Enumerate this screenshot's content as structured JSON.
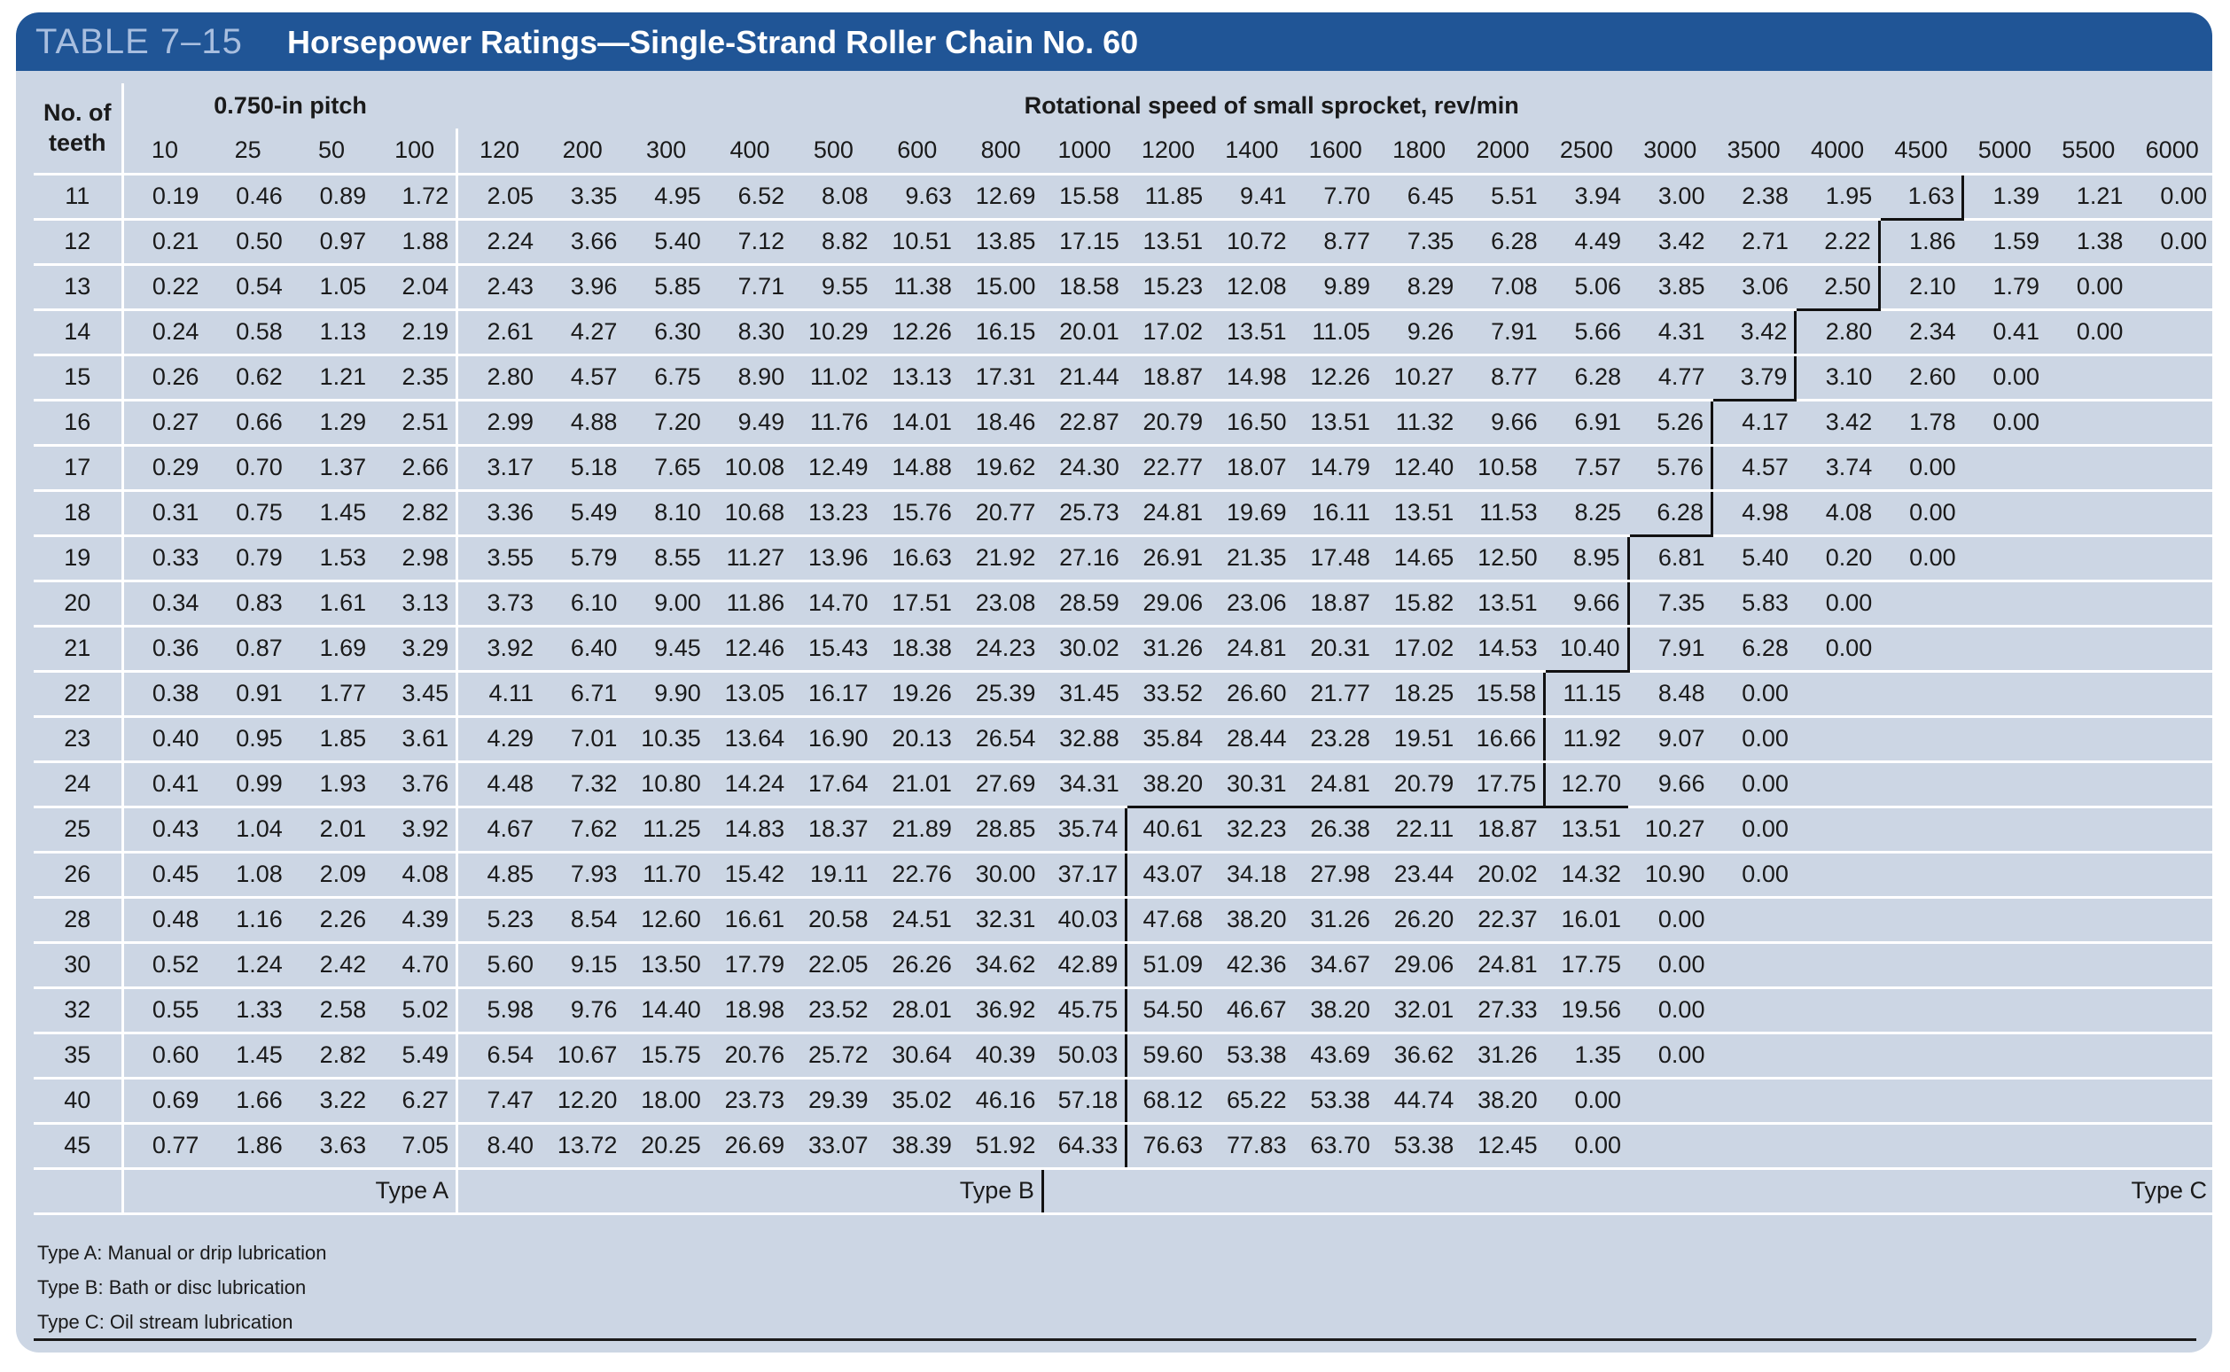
{
  "header": {
    "table_number": "TABLE 7–15",
    "title": "Horsepower Ratings—Single-Strand Roller Chain No. 60"
  },
  "table": {
    "teeth_header": [
      "No. of",
      "teeth"
    ],
    "pitch_label": "0.750-in pitch",
    "speed_label": "Rotational speed of small sprocket, rev/min",
    "speeds": [
      "10",
      "25",
      "50",
      "100",
      "120",
      "200",
      "300",
      "400",
      "500",
      "600",
      "800",
      "1000",
      "1200",
      "1400",
      "1600",
      "1800",
      "2000",
      "2500",
      "3000",
      "3500",
      "4000",
      "4500",
      "5000",
      "5500",
      "6000"
    ],
    "rows": [
      {
        "teeth": "11",
        "values": [
          "0.19",
          "0.46",
          "0.89",
          "1.72",
          "2.05",
          "3.35",
          "4.95",
          "6.52",
          "8.08",
          "9.63",
          "12.69",
          "15.58",
          "11.85",
          "9.41",
          "7.70",
          "6.45",
          "5.51",
          "3.94",
          "3.00",
          "2.38",
          "1.95",
          "1.63",
          "1.39",
          "1.21",
          "0.00"
        ]
      },
      {
        "teeth": "12",
        "values": [
          "0.21",
          "0.50",
          "0.97",
          "1.88",
          "2.24",
          "3.66",
          "5.40",
          "7.12",
          "8.82",
          "10.51",
          "13.85",
          "17.15",
          "13.51",
          "10.72",
          "8.77",
          "7.35",
          "6.28",
          "4.49",
          "3.42",
          "2.71",
          "2.22",
          "1.86",
          "1.59",
          "1.38",
          "0.00"
        ]
      },
      {
        "teeth": "13",
        "values": [
          "0.22",
          "0.54",
          "1.05",
          "2.04",
          "2.43",
          "3.96",
          "5.85",
          "7.71",
          "9.55",
          "11.38",
          "15.00",
          "18.58",
          "15.23",
          "12.08",
          "9.89",
          "8.29",
          "7.08",
          "5.06",
          "3.85",
          "3.06",
          "2.50",
          "2.10",
          "1.79",
          "0.00",
          ""
        ]
      },
      {
        "teeth": "14",
        "values": [
          "0.24",
          "0.58",
          "1.13",
          "2.19",
          "2.61",
          "4.27",
          "6.30",
          "8.30",
          "10.29",
          "12.26",
          "16.15",
          "20.01",
          "17.02",
          "13.51",
          "11.05",
          "9.26",
          "7.91",
          "5.66",
          "4.31",
          "3.42",
          "2.80",
          "2.34",
          "0.41",
          "0.00",
          ""
        ]
      },
      {
        "teeth": "15",
        "values": [
          "0.26",
          "0.62",
          "1.21",
          "2.35",
          "2.80",
          "4.57",
          "6.75",
          "8.90",
          "11.02",
          "13.13",
          "17.31",
          "21.44",
          "18.87",
          "14.98",
          "12.26",
          "10.27",
          "8.77",
          "6.28",
          "4.77",
          "3.79",
          "3.10",
          "2.60",
          "0.00",
          "",
          ""
        ]
      },
      {
        "teeth": "16",
        "values": [
          "0.27",
          "0.66",
          "1.29",
          "2.51",
          "2.99",
          "4.88",
          "7.20",
          "9.49",
          "11.76",
          "14.01",
          "18.46",
          "22.87",
          "20.79",
          "16.50",
          "13.51",
          "11.32",
          "9.66",
          "6.91",
          "5.26",
          "4.17",
          "3.42",
          "1.78",
          "0.00",
          "",
          ""
        ]
      },
      {
        "teeth": "17",
        "values": [
          "0.29",
          "0.70",
          "1.37",
          "2.66",
          "3.17",
          "5.18",
          "7.65",
          "10.08",
          "12.49",
          "14.88",
          "19.62",
          "24.30",
          "22.77",
          "18.07",
          "14.79",
          "12.40",
          "10.58",
          "7.57",
          "5.76",
          "4.57",
          "3.74",
          "0.00",
          "",
          "",
          ""
        ]
      },
      {
        "teeth": "18",
        "values": [
          "0.31",
          "0.75",
          "1.45",
          "2.82",
          "3.36",
          "5.49",
          "8.10",
          "10.68",
          "13.23",
          "15.76",
          "20.77",
          "25.73",
          "24.81",
          "19.69",
          "16.11",
          "13.51",
          "11.53",
          "8.25",
          "6.28",
          "4.98",
          "4.08",
          "0.00",
          "",
          "",
          ""
        ]
      },
      {
        "teeth": "19",
        "values": [
          "0.33",
          "0.79",
          "1.53",
          "2.98",
          "3.55",
          "5.79",
          "8.55",
          "11.27",
          "13.96",
          "16.63",
          "21.92",
          "27.16",
          "26.91",
          "21.35",
          "17.48",
          "14.65",
          "12.50",
          "8.95",
          "6.81",
          "5.40",
          "0.20",
          "0.00",
          "",
          "",
          ""
        ]
      },
      {
        "teeth": "20",
        "values": [
          "0.34",
          "0.83",
          "1.61",
          "3.13",
          "3.73",
          "6.10",
          "9.00",
          "11.86",
          "14.70",
          "17.51",
          "23.08",
          "28.59",
          "29.06",
          "23.06",
          "18.87",
          "15.82",
          "13.51",
          "9.66",
          "7.35",
          "5.83",
          "0.00",
          "",
          "",
          "",
          ""
        ]
      },
      {
        "teeth": "21",
        "values": [
          "0.36",
          "0.87",
          "1.69",
          "3.29",
          "3.92",
          "6.40",
          "9.45",
          "12.46",
          "15.43",
          "18.38",
          "24.23",
          "30.02",
          "31.26",
          "24.81",
          "20.31",
          "17.02",
          "14.53",
          "10.40",
          "7.91",
          "6.28",
          "0.00",
          "",
          "",
          "",
          ""
        ]
      },
      {
        "teeth": "22",
        "values": [
          "0.38",
          "0.91",
          "1.77",
          "3.45",
          "4.11",
          "6.71",
          "9.90",
          "13.05",
          "16.17",
          "19.26",
          "25.39",
          "31.45",
          "33.52",
          "26.60",
          "21.77",
          "18.25",
          "15.58",
          "11.15",
          "8.48",
          "0.00",
          "",
          "",
          "",
          "",
          ""
        ]
      },
      {
        "teeth": "23",
        "values": [
          "0.40",
          "0.95",
          "1.85",
          "3.61",
          "4.29",
          "7.01",
          "10.35",
          "13.64",
          "16.90",
          "20.13",
          "26.54",
          "32.88",
          "35.84",
          "28.44",
          "23.28",
          "19.51",
          "16.66",
          "11.92",
          "9.07",
          "0.00",
          "",
          "",
          "",
          "",
          ""
        ]
      },
      {
        "teeth": "24",
        "values": [
          "0.41",
          "0.99",
          "1.93",
          "3.76",
          "4.48",
          "7.32",
          "10.80",
          "14.24",
          "17.64",
          "21.01",
          "27.69",
          "34.31",
          "38.20",
          "30.31",
          "24.81",
          "20.79",
          "17.75",
          "12.70",
          "9.66",
          "0.00",
          "",
          "",
          "",
          "",
          ""
        ]
      },
      {
        "teeth": "25",
        "values": [
          "0.43",
          "1.04",
          "2.01",
          "3.92",
          "4.67",
          "7.62",
          "11.25",
          "14.83",
          "18.37",
          "21.89",
          "28.85",
          "35.74",
          "40.61",
          "32.23",
          "26.38",
          "22.11",
          "18.87",
          "13.51",
          "10.27",
          "0.00",
          "",
          "",
          "",
          "",
          ""
        ]
      },
      {
        "teeth": "26",
        "values": [
          "0.45",
          "1.08",
          "2.09",
          "4.08",
          "4.85",
          "7.93",
          "11.70",
          "15.42",
          "19.11",
          "22.76",
          "30.00",
          "37.17",
          "43.07",
          "34.18",
          "27.98",
          "23.44",
          "20.02",
          "14.32",
          "10.90",
          "0.00",
          "",
          "",
          "",
          "",
          ""
        ]
      },
      {
        "teeth": "28",
        "values": [
          "0.48",
          "1.16",
          "2.26",
          "4.39",
          "5.23",
          "8.54",
          "12.60",
          "16.61",
          "20.58",
          "24.51",
          "32.31",
          "40.03",
          "47.68",
          "38.20",
          "31.26",
          "26.20",
          "22.37",
          "16.01",
          "0.00",
          "",
          "",
          "",
          "",
          "",
          ""
        ]
      },
      {
        "teeth": "30",
        "values": [
          "0.52",
          "1.24",
          "2.42",
          "4.70",
          "5.60",
          "9.15",
          "13.50",
          "17.79",
          "22.05",
          "26.26",
          "34.62",
          "42.89",
          "51.09",
          "42.36",
          "34.67",
          "29.06",
          "24.81",
          "17.75",
          "0.00",
          "",
          "",
          "",
          "",
          "",
          ""
        ]
      },
      {
        "teeth": "32",
        "values": [
          "0.55",
          "1.33",
          "2.58",
          "5.02",
          "5.98",
          "9.76",
          "14.40",
          "18.98",
          "23.52",
          "28.01",
          "36.92",
          "45.75",
          "54.50",
          "46.67",
          "38.20",
          "32.01",
          "27.33",
          "19.56",
          "0.00",
          "",
          "",
          "",
          "",
          "",
          ""
        ]
      },
      {
        "teeth": "35",
        "values": [
          "0.60",
          "1.45",
          "2.82",
          "5.49",
          "6.54",
          "10.67",
          "15.75",
          "20.76",
          "25.72",
          "30.64",
          "40.39",
          "50.03",
          "59.60",
          "53.38",
          "43.69",
          "36.62",
          "31.26",
          "1.35",
          "0.00",
          "",
          "",
          "",
          "",
          "",
          ""
        ]
      },
      {
        "teeth": "40",
        "values": [
          "0.69",
          "1.66",
          "3.22",
          "6.27",
          "7.47",
          "12.20",
          "18.00",
          "23.73",
          "29.39",
          "35.02",
          "46.16",
          "57.18",
          "68.12",
          "65.22",
          "53.38",
          "44.74",
          "38.20",
          "0.00",
          "",
          "",
          "",
          "",
          "",
          "",
          ""
        ]
      },
      {
        "teeth": "45",
        "values": [
          "0.77",
          "1.86",
          "3.63",
          "7.05",
          "8.40",
          "13.72",
          "20.25",
          "26.69",
          "33.07",
          "38.39",
          "51.92",
          "64.33",
          "76.63",
          "77.83",
          "63.70",
          "53.38",
          "12.45",
          "0.00",
          "",
          "",
          "",
          "",
          "",
          "",
          ""
        ]
      }
    ],
    "type_labels": [
      "Type A",
      "Type B",
      "Type C"
    ]
  },
  "notes": [
    "Type A: Manual or drip lubrication",
    "Type B: Bath or disc lubrication",
    "Type C: Oil stream lubrication"
  ],
  "colors": {
    "panel": "#ccd6e4",
    "title_bar": "#205596",
    "table_number": "#a8bedf"
  }
}
